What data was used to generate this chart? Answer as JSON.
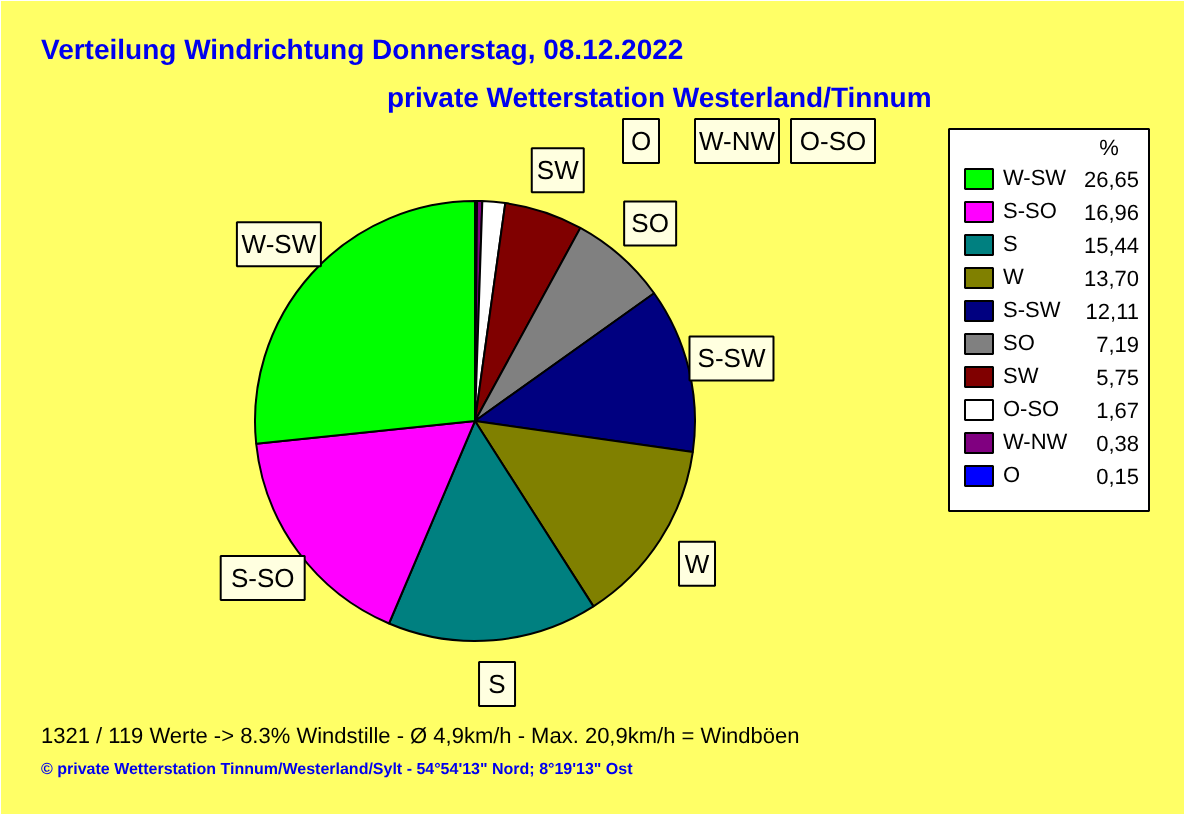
{
  "chart_data": {
    "type": "pie",
    "title": "Verteilung Windrichtung   Donnerstag, 08.12.2022",
    "subtitle": "private Wetterstation Westerland/Tinnum",
    "categories": [
      "O",
      "W-NW",
      "O-SO",
      "SW",
      "SO",
      "S-SW",
      "W",
      "S",
      "S-SO",
      "W-SW"
    ],
    "values": [
      0.15,
      0.38,
      1.67,
      5.75,
      7.19,
      12.11,
      13.7,
      15.44,
      16.96,
      26.65
    ],
    "value_labels": [
      "0,15",
      "0,38",
      "1,67",
      "5,75",
      "7,19",
      "12,11",
      "13,70",
      "15,44",
      "16,96",
      "26,65"
    ],
    "colors": [
      "#0000ff",
      "#800080",
      "#ffffff",
      "#800000",
      "#808080",
      "#000080",
      "#808000",
      "#008080",
      "#ff00ff",
      "#00ff00"
    ],
    "legend": "right",
    "legend_title": "%",
    "annotations": [
      "1321 / 119 Werte  -> 8.3% Windstille   -   Ø 4,9km/h  -  Max. 20,9km/h = Windböen",
      "© private Wetterstation Tinnum/Westerland/Sylt   -   54°54'13\" Nord; 8°19'13\" Ost"
    ]
  }
}
